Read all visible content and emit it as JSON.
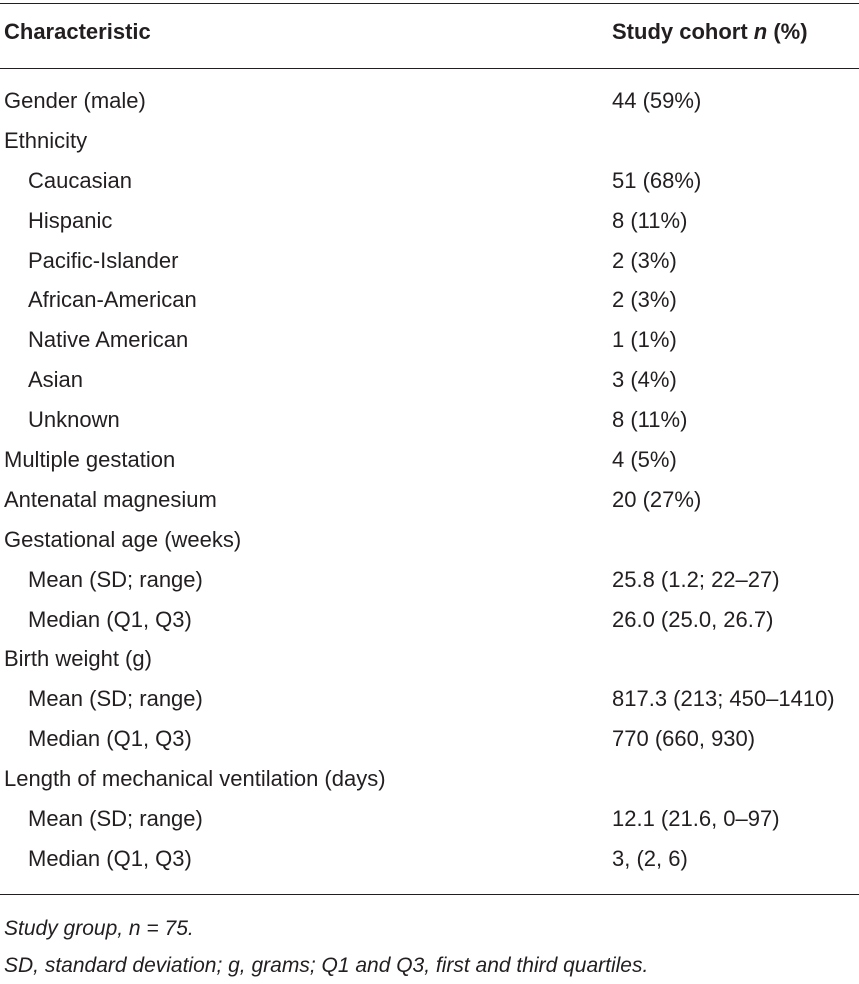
{
  "table": {
    "header": {
      "col1": "Characteristic",
      "col2_prefix": "Study cohort ",
      "col2_italic": "n",
      "col2_suffix": " (%)"
    },
    "rows": [
      {
        "label": "Gender (male)",
        "value": "44 (59%)",
        "indent": false
      },
      {
        "label": "Ethnicity",
        "value": "",
        "indent": false
      },
      {
        "label": "Caucasian",
        "value": "51 (68%)",
        "indent": true
      },
      {
        "label": "Hispanic",
        "value": "8 (11%)",
        "indent": true
      },
      {
        "label": "Pacific-Islander",
        "value": "2 (3%)",
        "indent": true
      },
      {
        "label": "African-American",
        "value": "2 (3%)",
        "indent": true
      },
      {
        "label": "Native American",
        "value": "1 (1%)",
        "indent": true
      },
      {
        "label": "Asian",
        "value": "3 (4%)",
        "indent": true
      },
      {
        "label": "Unknown",
        "value": "8 (11%)",
        "indent": true
      },
      {
        "label": "Multiple gestation",
        "value": "4 (5%)",
        "indent": false
      },
      {
        "label": "Antenatal magnesium",
        "value": "20 (27%)",
        "indent": false
      },
      {
        "label": "Gestational age (weeks)",
        "value": "",
        "indent": false
      },
      {
        "label": "Mean (SD; range)",
        "value": "25.8 (1.2; 22–27)",
        "indent": true
      },
      {
        "label": "Median (Q1, Q3)",
        "value": "26.0 (25.0, 26.7)",
        "indent": true
      },
      {
        "label": "Birth weight (g)",
        "value": "",
        "indent": false
      },
      {
        "label": "Mean (SD; range)",
        "value": "817.3 (213; 450–1410)",
        "indent": true
      },
      {
        "label": "Median (Q1, Q3)",
        "value": "770 (660, 930)",
        "indent": true
      },
      {
        "label": "Length of mechanical ventilation (days)",
        "value": "",
        "indent": false
      },
      {
        "label": "Mean (SD; range)",
        "value": "12.1 (21.6, 0–97)",
        "indent": true
      },
      {
        "label": "Median (Q1, Q3)",
        "value": "3, (2, 6)",
        "indent": true
      }
    ]
  },
  "footnotes": {
    "line1": "Study group, n = 75.",
    "line2": "SD, standard deviation; g, grams; Q1 and Q3, first and third quartiles."
  }
}
